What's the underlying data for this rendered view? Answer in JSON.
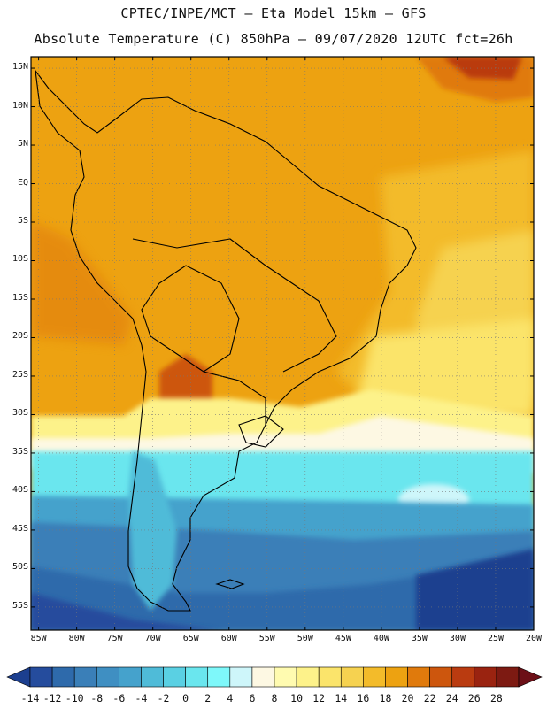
{
  "header": {
    "line1": "CPTEC/INPE/MCT –  Eta Model 15km – GFS",
    "line2": "Absolute Temperature (C) 850hPa – 09/07/2020 12UTC fct=26h"
  },
  "map": {
    "lat_labels": [
      "15N",
      "10N",
      "5N",
      "EQ",
      "5S",
      "10S",
      "15S",
      "20S",
      "25S",
      "30S",
      "35S",
      "40S",
      "45S",
      "50S",
      "55S"
    ],
    "lon_labels": [
      "85W",
      "80W",
      "75W",
      "70W",
      "65W",
      "60W",
      "55W",
      "50W",
      "45W",
      "40W",
      "35W",
      "30W",
      "25W",
      "20W"
    ],
    "extent": {
      "lon_min": -86,
      "lon_max": -20,
      "lat_min": -58,
      "lat_max": 16.5
    }
  },
  "colorbar": {
    "ticks": [
      "-14",
      "-12",
      "-10",
      "-8",
      "-6",
      "-4",
      "-2",
      "0",
      "2",
      "4",
      "6",
      "8",
      "10",
      "12",
      "14",
      "16",
      "18",
      "20",
      "22",
      "24",
      "26",
      "28"
    ],
    "colors": [
      "#1c3f8f",
      "#254c9d",
      "#2e6aab",
      "#3a7fb8",
      "#3f8fc2",
      "#45a2cc",
      "#4fbbd8",
      "#5ad0e3",
      "#6ae6ee",
      "#7ef8fa",
      "#cef6fa",
      "#fdf8e3",
      "#fffbb0",
      "#fdf28a",
      "#fbe46b",
      "#f6d250",
      "#f3bb2a",
      "#eda211",
      "#e07a0c",
      "#cd560d",
      "#ba3b10",
      "#9a2310",
      "#7d1a12",
      "#6c0f17"
    ]
  }
}
